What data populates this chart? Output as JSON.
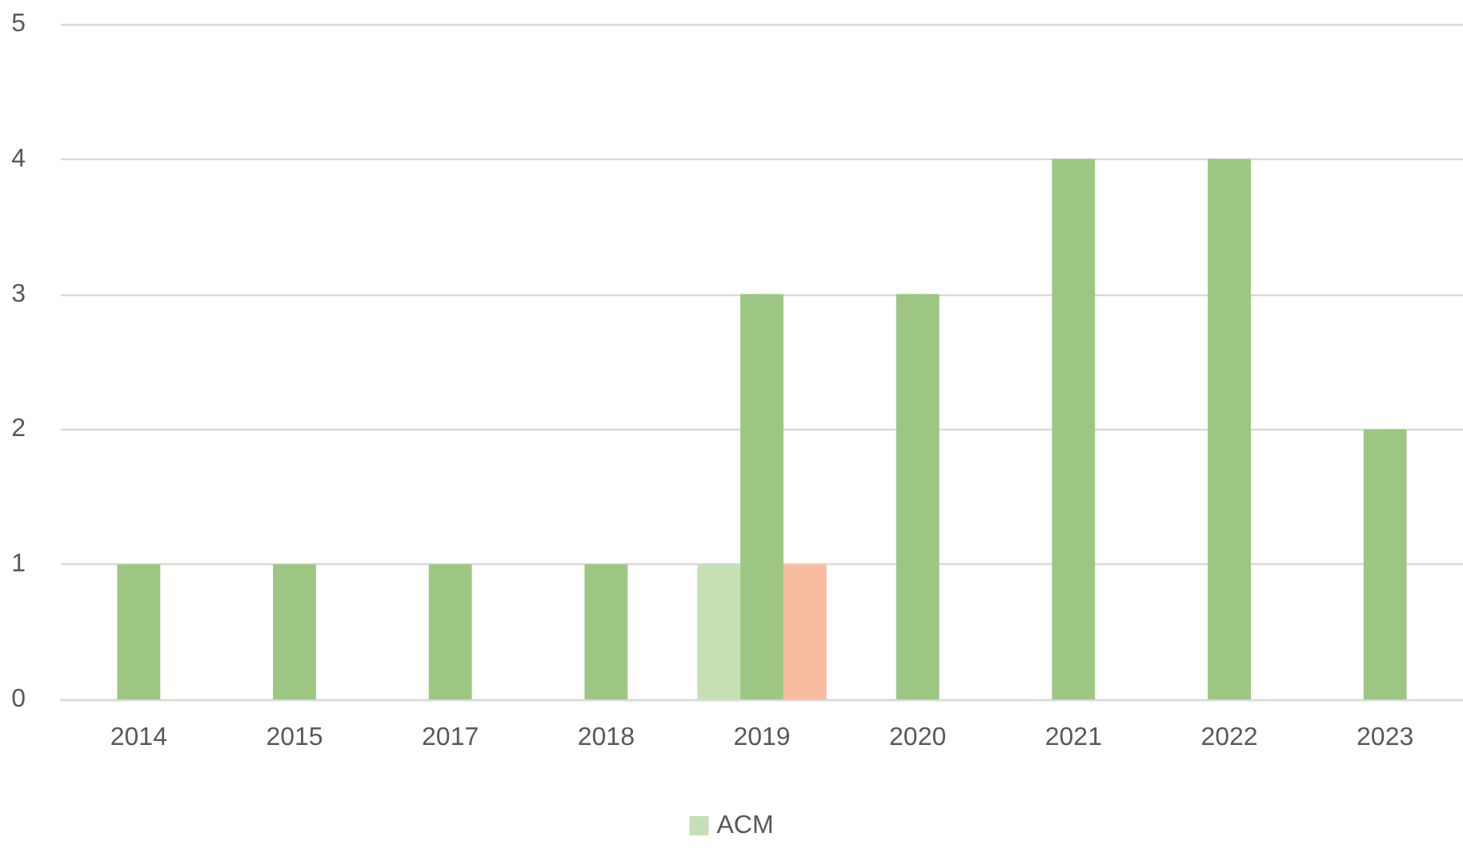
{
  "chart_data": {
    "type": "bar",
    "categories": [
      "2014",
      "2015",
      "2017",
      "2018",
      "2019",
      "2020",
      "2021",
      "2022",
      "2023"
    ],
    "series": [
      {
        "name": "ACM",
        "color": "#c5e0b4",
        "values": [
          null,
          null,
          null,
          null,
          1,
          null,
          null,
          null,
          null
        ]
      },
      {
        "color": "#9dc683",
        "values": [
          1,
          1,
          1,
          1,
          3,
          3,
          4,
          4,
          2
        ]
      },
      {
        "color": "#f8bca0",
        "values": [
          null,
          null,
          null,
          null,
          1,
          null,
          null,
          null,
          null
        ]
      }
    ],
    "ylim": [
      0,
      5
    ],
    "yticks": [
      0,
      1,
      2,
      3,
      4,
      5
    ],
    "grid": "y",
    "legend": "bottom"
  }
}
